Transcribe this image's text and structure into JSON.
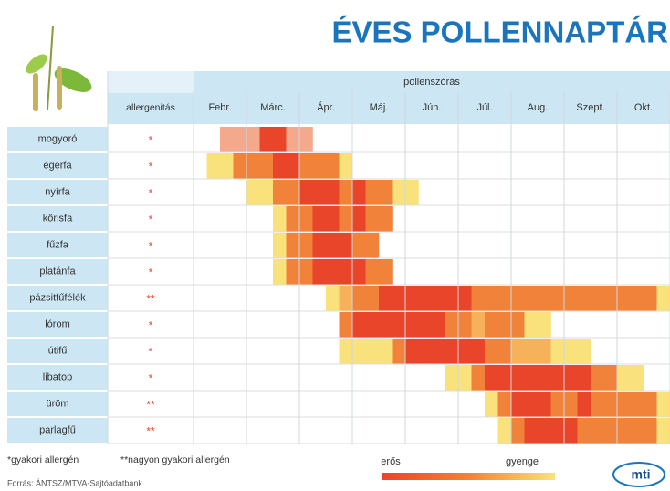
{
  "title": "ÉVES POLLENNAPTÁR",
  "header": {
    "group": "pollenszórás",
    "allergenity": "allergenitás",
    "months": [
      "Febr.",
      "Márc.",
      "Ápr.",
      "Máj.",
      "Jún.",
      "Júl.",
      "Aug.",
      "Szept.",
      "Okt."
    ]
  },
  "rows": [
    {
      "name": "mogyoró",
      "allergenity": "*",
      "cells": [
        null,
        null,
        "#f4a98c",
        "#f4a98c",
        "#f4a98c",
        "#e8452a",
        "#e8452a",
        "#f4a98c",
        "#f4a98c",
        null,
        null,
        null,
        null,
        null,
        null,
        null,
        null,
        null,
        null,
        null,
        null,
        null,
        null,
        null,
        null,
        null,
        null,
        null,
        null,
        null,
        null,
        null,
        null,
        null,
        null,
        null
      ]
    },
    {
      "name": "égerfa",
      "allergenity": "*",
      "cells": [
        null,
        "#f9e27c",
        "#f9e27c",
        "#f0823a",
        "#f0823a",
        "#f0823a",
        "#e8452a",
        "#e8452a",
        "#f0823a",
        "#f0823a",
        "#f0823a",
        "#f9e27c",
        null,
        null,
        null,
        null,
        null,
        null,
        null,
        null,
        null,
        null,
        null,
        null,
        null,
        null,
        null,
        null,
        null,
        null,
        null,
        null,
        null,
        null,
        null,
        null
      ]
    },
    {
      "name": "nyírfa",
      "allergenity": "*",
      "cells": [
        null,
        null,
        null,
        null,
        "#f9e27c",
        "#f9e27c",
        "#f0823a",
        "#f0823a",
        "#e8452a",
        "#e8452a",
        "#e8452a",
        "#f0823a",
        "#e8452a",
        "#f0823a",
        "#f0823a",
        "#f9e27c",
        "#f9e27c",
        null,
        null,
        null,
        null,
        null,
        null,
        null,
        null,
        null,
        null,
        null,
        null,
        null,
        null,
        null,
        null,
        null,
        null,
        null
      ]
    },
    {
      "name": "kőrisfa",
      "allergenity": "*",
      "cells": [
        null,
        null,
        null,
        null,
        null,
        null,
        "#f9e27c",
        "#f0823a",
        "#f0823a",
        "#e8452a",
        "#e8452a",
        "#f0823a",
        "#e8452a",
        "#f0823a",
        "#f0823a",
        null,
        null,
        null,
        null,
        null,
        null,
        null,
        null,
        null,
        null,
        null,
        null,
        null,
        null,
        null,
        null,
        null,
        null,
        null,
        null,
        null
      ]
    },
    {
      "name": "fűzfa",
      "allergenity": "*",
      "cells": [
        null,
        null,
        null,
        null,
        null,
        null,
        "#f9e27c",
        "#f0823a",
        "#f0823a",
        "#e8452a",
        "#e8452a",
        "#e8452a",
        "#f0823a",
        "#f0823a",
        null,
        null,
        null,
        null,
        null,
        null,
        null,
        null,
        null,
        null,
        null,
        null,
        null,
        null,
        null,
        null,
        null,
        null,
        null,
        null,
        null,
        null
      ]
    },
    {
      "name": "platánfa",
      "allergenity": "*",
      "cells": [
        null,
        null,
        null,
        null,
        null,
        null,
        "#f9e27c",
        "#f0823a",
        "#f0823a",
        "#e8452a",
        "#e8452a",
        "#e8452a",
        "#e8452a",
        "#f0823a",
        "#f0823a",
        null,
        null,
        null,
        null,
        null,
        null,
        null,
        null,
        null,
        null,
        null,
        null,
        null,
        null,
        null,
        null,
        null,
        null,
        null,
        null,
        null
      ]
    },
    {
      "name": "pázsitfűfélék",
      "allergenity": "**",
      "cells": [
        null,
        null,
        null,
        null,
        null,
        null,
        null,
        null,
        null,
        null,
        "#f9e27c",
        "#f6b25a",
        "#f0823a",
        "#f0823a",
        "#e8452a",
        "#e8452a",
        "#e8452a",
        "#e8452a",
        "#e8452a",
        "#e8452a",
        "#e8452a",
        "#f0823a",
        "#f0823a",
        "#f0823a",
        "#f0823a",
        "#f0823a",
        "#f0823a",
        "#f0823a",
        "#f0823a",
        "#f0823a",
        "#f0823a",
        "#f0823a",
        "#f0823a",
        "#f0823a",
        "#f0823a",
        "#f9e27c"
      ]
    },
    {
      "name": "lórom",
      "allergenity": "*",
      "cells": [
        null,
        null,
        null,
        null,
        null,
        null,
        null,
        null,
        null,
        null,
        null,
        "#f0823a",
        "#e8452a",
        "#e8452a",
        "#e8452a",
        "#e8452a",
        "#e8452a",
        "#e8452a",
        "#e8452a",
        "#f0823a",
        "#f0823a",
        "#f6b25a",
        "#f0823a",
        "#f0823a",
        "#f0823a",
        "#f9e27c",
        "#f9e27c",
        null,
        null,
        null,
        null,
        null,
        null,
        null,
        null,
        null
      ]
    },
    {
      "name": "útifű",
      "allergenity": "*",
      "cells": [
        null,
        null,
        null,
        null,
        null,
        null,
        null,
        null,
        null,
        null,
        null,
        "#f9e27c",
        "#f9e27c",
        "#f9e27c",
        "#f9e27c",
        "#f0823a",
        "#e8452a",
        "#e8452a",
        "#e8452a",
        "#e8452a",
        "#e8452a",
        "#e8452a",
        "#f0823a",
        "#f0823a",
        "#f6b25a",
        "#f6b25a",
        "#f6b25a",
        "#f9e27c",
        "#f9e27c",
        "#f9e27c",
        null,
        null,
        null,
        null,
        null,
        null
      ]
    },
    {
      "name": "libatop",
      "allergenity": "*",
      "cells": [
        null,
        null,
        null,
        null,
        null,
        null,
        null,
        null,
        null,
        null,
        null,
        null,
        null,
        null,
        null,
        null,
        null,
        null,
        null,
        "#f9e27c",
        "#f9e27c",
        "#f0823a",
        "#e8452a",
        "#e8452a",
        "#e8452a",
        "#e8452a",
        "#e8452a",
        "#e8452a",
        "#e8452a",
        "#e8452a",
        "#f0823a",
        "#f0823a",
        "#f9e27c",
        "#f9e27c",
        null,
        null
      ]
    },
    {
      "name": "üröm",
      "allergenity": "**",
      "cells": [
        null,
        null,
        null,
        null,
        null,
        null,
        null,
        null,
        null,
        null,
        null,
        null,
        null,
        null,
        null,
        null,
        null,
        null,
        null,
        null,
        null,
        null,
        "#f9e27c",
        "#f0823a",
        "#e8452a",
        "#e8452a",
        "#e8452a",
        "#f0823a",
        "#f0823a",
        "#e8452a",
        "#f0823a",
        "#f0823a",
        "#f0823a",
        "#f0823a",
        "#f0823a",
        "#f9e27c"
      ]
    },
    {
      "name": "parlagfű",
      "allergenity": "**",
      "cells": [
        null,
        null,
        null,
        null,
        null,
        null,
        null,
        null,
        null,
        null,
        null,
        null,
        null,
        null,
        null,
        null,
        null,
        null,
        null,
        null,
        null,
        null,
        null,
        "#f9e27c",
        "#f0823a",
        "#e8452a",
        "#e8452a",
        "#e8452a",
        "#e8452a",
        "#f0823a",
        "#f0823a",
        "#f0823a",
        "#f0823a",
        "#f0823a",
        "#f0823a",
        "#f9e27c"
      ]
    }
  ],
  "legend": {
    "strong": "erős",
    "weak": "gyenge",
    "colors": [
      "#e8452a",
      "#f0823a",
      "#f9e27c"
    ]
  },
  "footnotes": [
    "*gyakori allergén",
    "**nagyon gyakori allergén"
  ],
  "source": "Forrás: ÁNTSZ/MTVA-Sajtóadatbank",
  "logo": "mti"
}
